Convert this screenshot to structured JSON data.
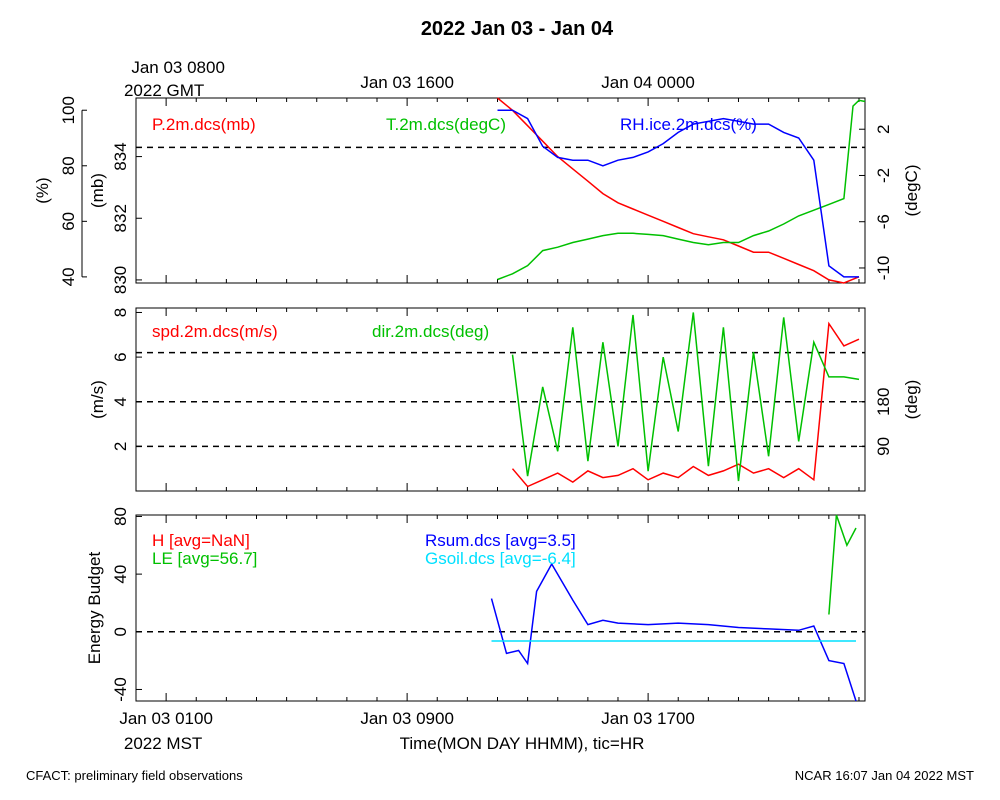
{
  "title": "2022 Jan 03 - Jan 04",
  "footer": {
    "left": "CFACT: preliminary field observations",
    "right": "NCAR 16:07 Jan 04 2022 MST"
  },
  "colors": {
    "red": "#ff0000",
    "green": "#00c000",
    "blue": "#0000ff",
    "cyan": "#00e0ff"
  },
  "top_axis": {
    "ticks": [
      {
        "hour": 0,
        "label": "Jan 03 0800",
        "sublabel": "2022 GMT"
      },
      {
        "hour": 8,
        "label": "Jan 03 1600"
      },
      {
        "hour": 16,
        "label": "Jan 04 0000"
      }
    ]
  },
  "bottom_axis": {
    "ticks": [
      {
        "hour": 0,
        "label": "Jan 03 0100",
        "sublabel": "2022 MST"
      },
      {
        "hour": 8,
        "label": "Jan 03 0900"
      },
      {
        "hour": 16,
        "label": "Jan 03 1700"
      }
    ],
    "xlabel": "Time(MON DAY HHMM), tic=HR"
  },
  "chart_data": [
    {
      "type": "line",
      "panel": "pressure-temperature-rh",
      "xlim": [
        -1,
        23.2
      ],
      "ylim": [
        829.9,
        835.9
      ],
      "ylabel": "(mb)",
      "yticks": [
        830,
        832,
        834
      ],
      "left2": {
        "ylabel": "(%)",
        "ylim": [
          37.8,
          104.4
        ],
        "ticks": [
          40,
          60,
          80,
          100
        ]
      },
      "right": {
        "ylabel": "(degC)",
        "ylim": [
          -11.3,
          4.7
        ],
        "ticks": [
          -10,
          -6,
          -2,
          2
        ]
      },
      "hlines": [
        834.3
      ],
      "legend": [
        {
          "text": "P.2m.dcs(mb)",
          "color": "red"
        },
        {
          "text": "T.2m.dcs(degC)",
          "color": "green"
        },
        {
          "text": "RH.ice.2m.dcs(%)",
          "color": "blue"
        }
      ],
      "series": [
        {
          "name": "P.2m.dcs",
          "axis": "left",
          "color": "red",
          "x": [
            11,
            11.5,
            12,
            12.5,
            13,
            13.5,
            14,
            14.5,
            15,
            15.5,
            16,
            16.5,
            17,
            17.5,
            18,
            18.5,
            19,
            19.5,
            20,
            20.5,
            21,
            21.5,
            22,
            22.5,
            23
          ],
          "y": [
            835.9,
            835.5,
            835.0,
            834.5,
            834.0,
            833.6,
            833.2,
            832.8,
            832.5,
            832.3,
            832.1,
            831.9,
            831.7,
            831.5,
            831.4,
            831.3,
            831.1,
            830.9,
            830.9,
            830.7,
            830.5,
            830.3,
            830.0,
            829.9,
            830.1
          ]
        },
        {
          "name": "T.2m.dcs",
          "axis": "right",
          "color": "green",
          "x": [
            11,
            11.5,
            12,
            12.5,
            13,
            13.5,
            14,
            14.5,
            15,
            15.5,
            16,
            16.5,
            17,
            17.5,
            18,
            18.5,
            19,
            19.5,
            20,
            20.5,
            21,
            21.5,
            22,
            22.5,
            22.8,
            23.0,
            23.2
          ],
          "y": [
            -11.0,
            -10.5,
            -9.8,
            -8.5,
            -8.2,
            -7.8,
            -7.5,
            -7.2,
            -7.0,
            -7.0,
            -7.1,
            -7.2,
            -7.5,
            -7.8,
            -8.0,
            -7.8,
            -7.8,
            -7.2,
            -6.8,
            -6.2,
            -5.5,
            -5.0,
            -4.5,
            -4.0,
            4.0,
            4.5,
            4.4
          ]
        },
        {
          "name": "RH.ice.2m.dcs",
          "axis": "left2",
          "color": "blue",
          "x": [
            11,
            11.5,
            12,
            12.5,
            13,
            13.5,
            14,
            14.5,
            15,
            15.5,
            16,
            16.5,
            17,
            17.5,
            18,
            18.5,
            19,
            19.5,
            20,
            20.5,
            21,
            21.5,
            22,
            22.5,
            23
          ],
          "y": [
            100,
            100,
            97,
            87,
            83,
            82,
            82,
            80,
            82,
            83,
            85,
            88,
            92,
            95,
            96,
            97,
            96,
            95,
            95,
            92,
            90,
            82,
            44,
            40,
            40
          ]
        }
      ]
    },
    {
      "type": "line",
      "panel": "wind",
      "xlim": [
        -1,
        23.2
      ],
      "ylim": [
        0,
        8.2
      ],
      "ylabel": "(m/s)",
      "yticks": [
        2,
        4,
        6,
        8
      ],
      "right": {
        "ylabel": "(deg)",
        "ylim": [
          0,
          369
        ],
        "ticks": [
          90,
          180
        ]
      },
      "hlines": [
        2,
        4,
        6.2
      ],
      "legend": [
        {
          "text": "spd.2m.dcs(m/s)",
          "color": "red"
        },
        {
          "text": "dir.2m.dcs(deg)",
          "color": "green"
        }
      ],
      "series": [
        {
          "name": "spd.2m.dcs",
          "axis": "left",
          "color": "red",
          "x": [
            11.5,
            12,
            12.5,
            13,
            13.5,
            14,
            14.5,
            15,
            15.5,
            16,
            16.5,
            17,
            17.5,
            18,
            18.5,
            19,
            19.5,
            20,
            20.5,
            21,
            21.5,
            22,
            22.5,
            23.0
          ],
          "y": [
            1.0,
            0.2,
            0.5,
            0.8,
            0.4,
            0.9,
            0.6,
            0.7,
            1.0,
            0.5,
            0.8,
            0.6,
            1.1,
            0.7,
            0.9,
            1.2,
            0.8,
            1.0,
            0.6,
            1.0,
            0.5,
            7.5,
            6.5,
            6.8
          ]
        },
        {
          "name": "dir.2m.dcs",
          "axis": "right",
          "color": "green",
          "x": [
            11.5,
            12,
            12.5,
            13,
            13.5,
            14,
            14.5,
            15,
            15.5,
            16,
            16.5,
            17,
            17.5,
            18,
            18.5,
            19,
            19.5,
            20,
            20.5,
            21,
            21.5,
            22,
            22.5,
            23.0
          ],
          "y": [
            275,
            30,
            210,
            80,
            330,
            60,
            300,
            90,
            355,
            40,
            270,
            120,
            360,
            50,
            330,
            20,
            280,
            70,
            350,
            100,
            300,
            230,
            230,
            225
          ]
        }
      ]
    },
    {
      "type": "line",
      "panel": "energy-budget",
      "xlim": [
        -1,
        23.2
      ],
      "ylim": [
        -48,
        81
      ],
      "ylabel": "Energy Budget",
      "yticks": [
        -40,
        0,
        40,
        80
      ],
      "hlines": [
        0
      ],
      "legend": [
        {
          "text": "H [avg=NaN]",
          "color": "red"
        },
        {
          "text": "LE [avg=56.7]",
          "color": "green"
        },
        {
          "text": "Rsum.dcs [avg=3.5]",
          "color": "blue"
        },
        {
          "text": "Gsoil.dcs [avg=-6.4]",
          "color": "cyan"
        }
      ],
      "series": [
        {
          "name": "LE",
          "color": "green",
          "x": [
            22.0,
            22.25,
            22.6,
            22.9
          ],
          "y": [
            12,
            81,
            60,
            72
          ]
        },
        {
          "name": "Rsum.dcs",
          "color": "blue",
          "x": [
            10.8,
            11.3,
            11.7,
            12.0,
            12.3,
            12.8,
            13.5,
            14.0,
            14.5,
            15.0,
            16.0,
            17.0,
            18.0,
            19.0,
            20.0,
            21.0,
            21.5,
            22.0,
            22.5,
            22.9
          ],
          "y": [
            23,
            -15,
            -13,
            -22,
            28,
            47,
            22,
            5,
            8,
            6,
            5,
            6,
            5,
            3,
            2,
            1,
            4,
            -20,
            -22,
            -48
          ]
        },
        {
          "name": "Gsoil.dcs",
          "color": "cyan",
          "x": [
            10.8,
            22.9
          ],
          "y": [
            -6.4,
            -6.4
          ]
        }
      ]
    }
  ]
}
